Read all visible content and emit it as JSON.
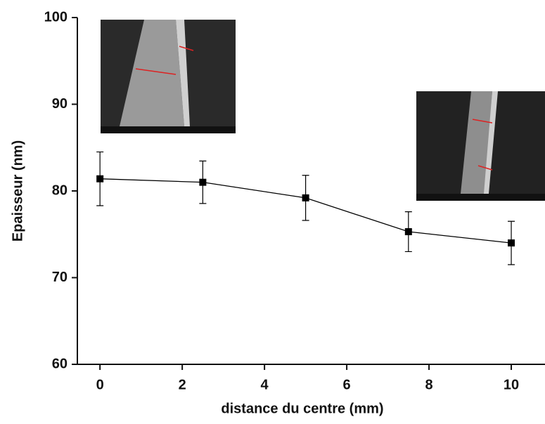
{
  "chart_data": {
    "type": "line",
    "xlabel": "distance du centre (mm)",
    "ylabel": "Epaisseur (nm)",
    "x": [
      0,
      2.5,
      5,
      7.5,
      10
    ],
    "series": [
      {
        "name": "Epaisseur",
        "color": "#000000",
        "values": [
          81.4,
          81.0,
          79.2,
          75.3,
          74.0
        ],
        "errors": [
          3.1,
          2.45,
          2.6,
          2.3,
          2.5
        ]
      }
    ],
    "xlim": [
      -0.55,
      10.82
    ],
    "xticks": [
      0,
      2,
      4,
      6,
      8,
      10
    ],
    "ylim": [
      60,
      100
    ],
    "yticks": [
      60,
      70,
      80,
      90,
      100
    ]
  }
}
